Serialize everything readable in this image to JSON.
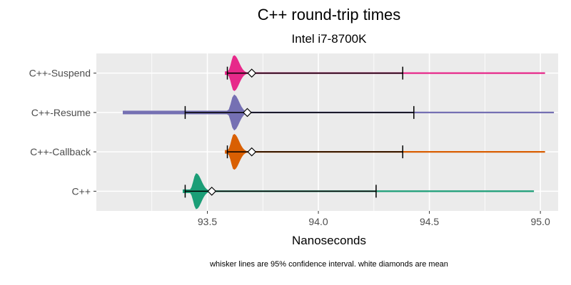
{
  "chart_data": {
    "type": "violin",
    "title": "C++  round-trip times",
    "subtitle": "Intel i7-8700K",
    "xlabel": "Nanoseconds",
    "ylabel": "",
    "caption": "whisker lines are 95% confidence interval. white diamonds are mean",
    "xlim": [
      93.0,
      95.08
    ],
    "x_ticks": [
      93.5,
      94.0,
      94.5,
      95.0
    ],
    "x_tick_labels": [
      "93.5",
      "94.0",
      "94.5",
      "95.0"
    ],
    "grid": true,
    "legend": "none",
    "categories": [
      "C++",
      "C++-Callback",
      "C++-Resume",
      "C++-Suspend"
    ],
    "series": [
      {
        "category": "C++",
        "color": "#1b9e77",
        "min": 93.39,
        "max": 94.97,
        "mode": 93.45,
        "ci_low": 93.4,
        "ci_high": 94.26,
        "mean": 93.52
      },
      {
        "category": "C++-Callback",
        "color": "#d95f02",
        "min": 93.58,
        "max": 95.02,
        "mode": 93.62,
        "ci_low": 93.59,
        "ci_high": 94.38,
        "mean": 93.7
      },
      {
        "category": "C++-Resume",
        "color": "#7570b3",
        "min": 93.12,
        "max": 95.06,
        "mode": 93.62,
        "ci_low": 93.4,
        "ci_high": 94.43,
        "mean": 93.68
      },
      {
        "category": "C++-Suspend",
        "color": "#e7298a",
        "min": 93.58,
        "max": 95.02,
        "mode": 93.62,
        "ci_low": 93.59,
        "ci_high": 94.38,
        "mean": 93.7
      }
    ]
  }
}
